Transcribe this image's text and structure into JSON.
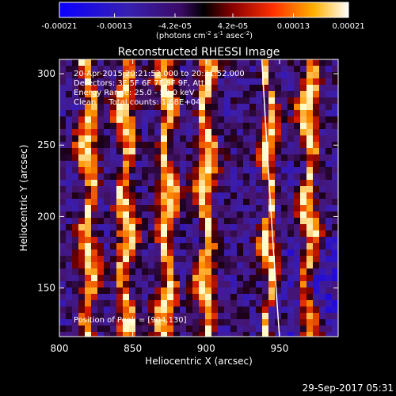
{
  "chart_data": {
    "type": "heatmap",
    "title": "Reconstructed RHESSI Image",
    "xlabel": "Heliocentric X (arcsec)",
    "ylabel": "Heliocentric Y (arcsec)",
    "xlim": [
      800,
      990
    ],
    "ylim": [
      116,
      310
    ],
    "x_ticks": [
      800,
      850,
      900,
      950
    ],
    "y_ticks": [
      150,
      200,
      250,
      300
    ],
    "colorbar": {
      "range": [
        -0.00021,
        0.00021
      ],
      "ticks": [
        "-0.00021",
        "-0.00013",
        "-4.2e-05",
        "4.2e-05",
        "0.00013",
        "0.00021"
      ],
      "tick_values": [
        -0.00021,
        -0.00013,
        -4.2e-05,
        4.2e-05,
        0.00013,
        0.00021
      ],
      "unit_parts": [
        "(photons cm",
        "-2",
        " s",
        "-1",
        " asec",
        "-2",
        ")"
      ]
    },
    "annotations": [
      "20-Apr-2015 20:21:52.000 to 20:31:52.000",
      "Detectors: 3F 5F 6F 7F 8F 9F, Att 0",
      "Energy Range: 25.0 - 50.0 keV",
      "Clean     Total counts: 1.68E+04"
    ],
    "peak_label": "Position of Peak = [904,130]",
    "limb_curve": {
      "x": [
        938,
        944,
        950
      ],
      "y": [
        310,
        200,
        116
      ]
    },
    "bright_columns_x": [
      820,
      845,
      873,
      900,
      943,
      970
    ],
    "colors": {
      "background": "#000000",
      "frame": "#ffffff"
    }
  },
  "footer": {
    "timestamp": "29-Sep-2017 05:31"
  }
}
